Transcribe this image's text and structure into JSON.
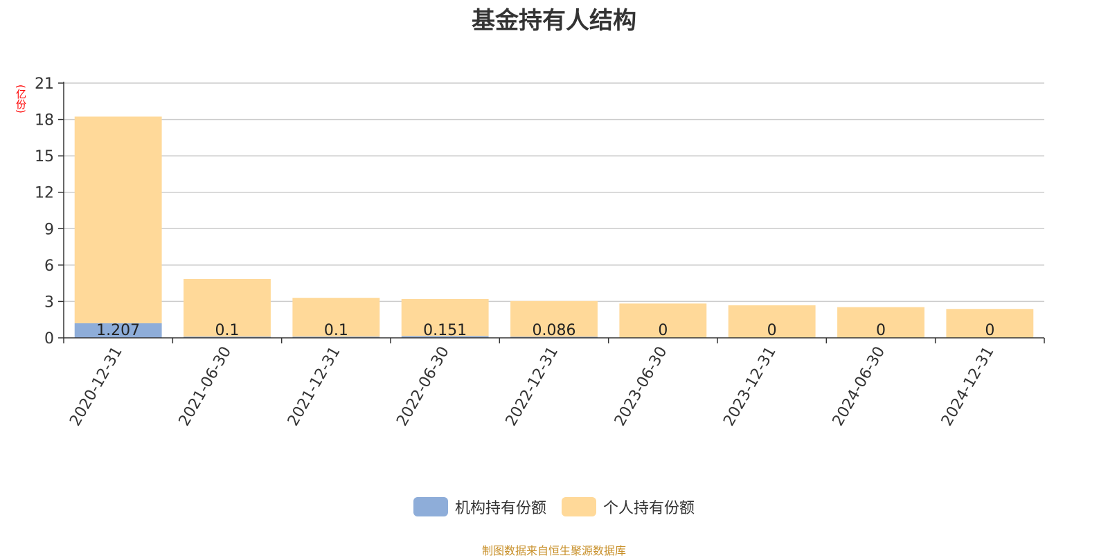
{
  "chart_data": {
    "type": "bar",
    "stacked": true,
    "title": "基金持有人结构",
    "ylabel": "(亿份)",
    "ylim": [
      0,
      21
    ],
    "yticks": [
      0,
      3,
      6,
      9,
      12,
      15,
      18,
      21
    ],
    "grid": true,
    "legend_position": "bottom",
    "categories": [
      "2020-12-31",
      "2021-06-30",
      "2021-12-31",
      "2022-06-30",
      "2022-12-31",
      "2023-06-30",
      "2023-12-31",
      "2024-06-30",
      "2024-12-31"
    ],
    "series": [
      {
        "name": "机构持有份额",
        "color": "#8eadd9",
        "values": [
          1.207,
          0.1,
          0.1,
          0.151,
          0.086,
          0,
          0,
          0,
          0
        ],
        "labels": [
          "1.207",
          "0.1",
          "0.1",
          "0.151",
          "0.086",
          "0",
          "0",
          "0",
          "0"
        ]
      },
      {
        "name": "个人持有份额",
        "color": "#ffd999",
        "values": [
          17.03,
          4.75,
          3.2,
          3.05,
          2.95,
          2.83,
          2.68,
          2.53,
          2.38
        ]
      }
    ]
  },
  "source": "制图数据来自恒生聚源数据库"
}
